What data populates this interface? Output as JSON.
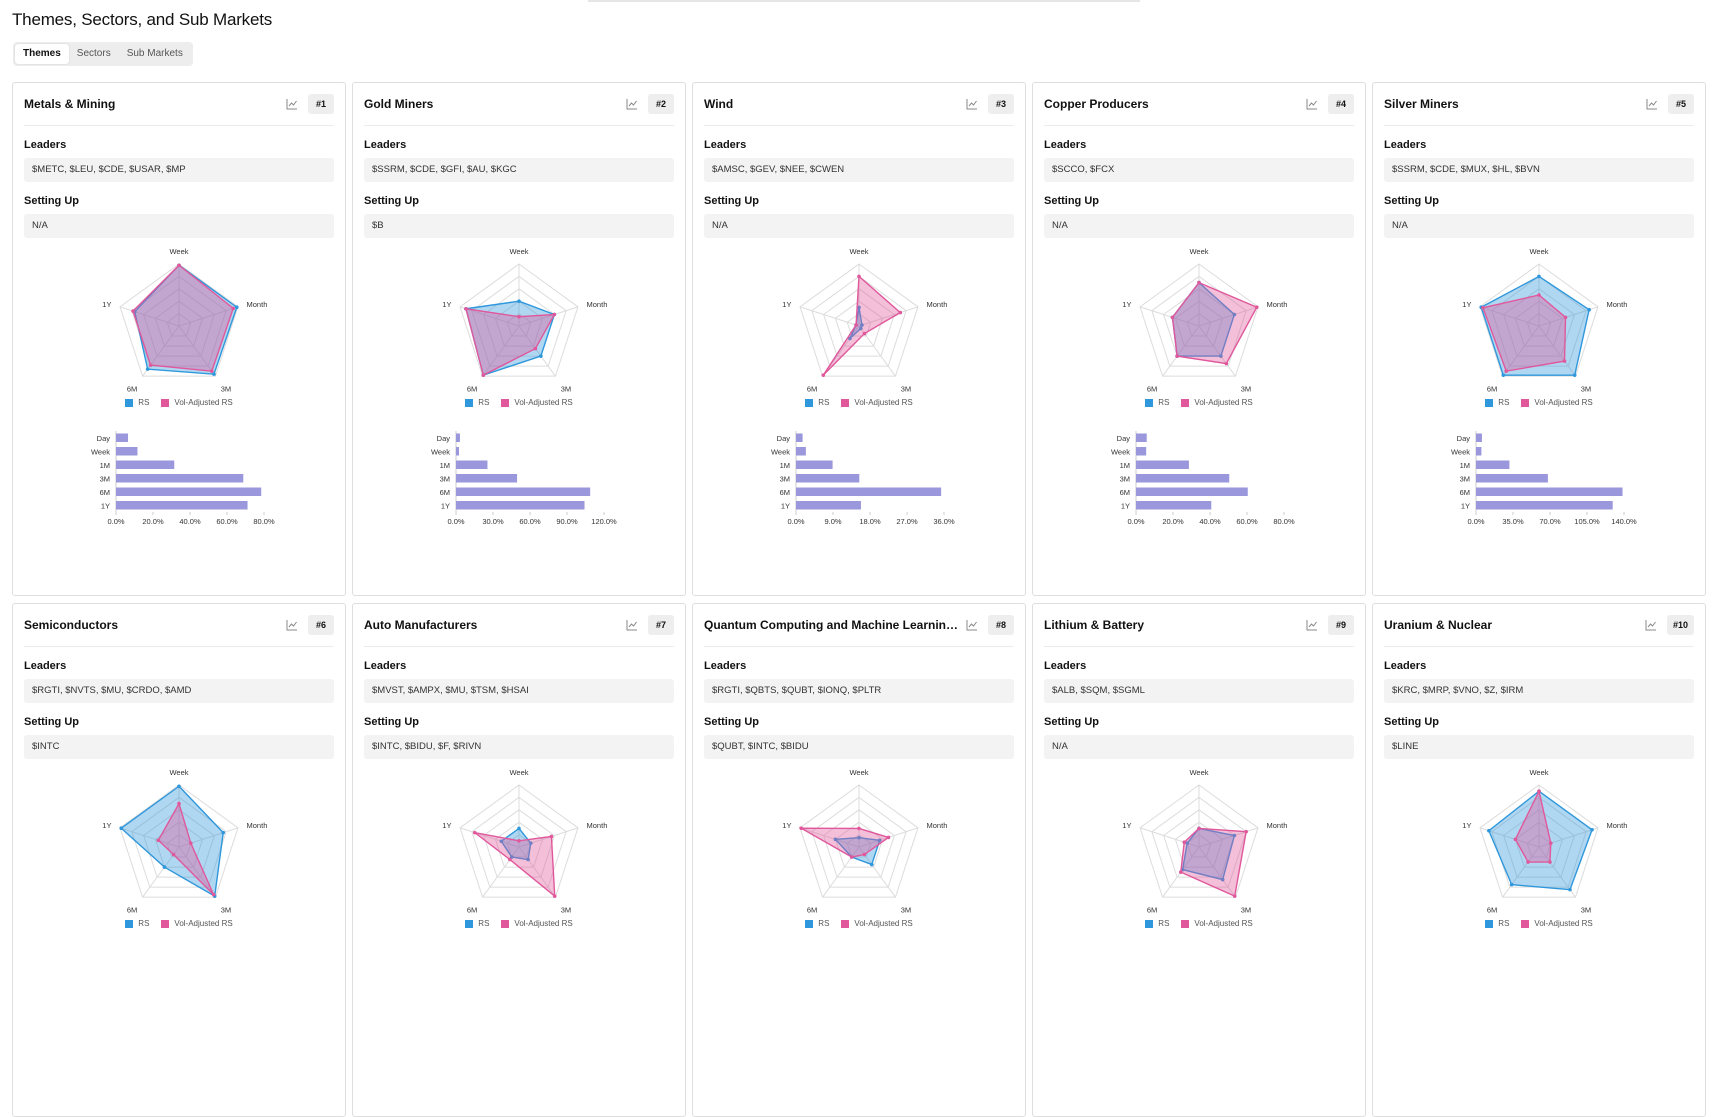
{
  "page": {
    "title": "Themes, Sectors, and Sub Markets"
  },
  "tabs": [
    {
      "label": "Themes",
      "active": true
    },
    {
      "label": "Sectors",
      "active": false
    },
    {
      "label": "Sub Markets",
      "active": false
    }
  ],
  "labels": {
    "leaders": "Leaders",
    "setting_up": "Setting Up",
    "legend_rs": "RS",
    "legend_vol": "Vol-Adjusted RS"
  },
  "colors": {
    "rs": "#2f97db",
    "vol_rs": "#e0589b",
    "bar": "#9a97dc"
  },
  "chart_data": [
    {
      "type": "radar+bar",
      "title": "Metals & Mining",
      "rank": "#1",
      "leaders": "$METC, $LEU, $CDE, $USAR, $MP",
      "setting_up": "N/A",
      "axes": [
        "Week",
        "Month",
        "3M",
        "6M",
        "1Y"
      ],
      "rs": [
        0.98,
        0.98,
        0.96,
        0.86,
        0.75
      ],
      "vol_rs": [
        0.98,
        0.92,
        0.9,
        0.78,
        0.78
      ],
      "bar_categories": [
        "Day",
        "Week",
        "1M",
        "3M",
        "6M",
        "1Y"
      ],
      "bar_values": [
        6.5,
        11.6,
        31.5,
        68.8,
        78.5,
        71.1
      ],
      "bar_ticks": [
        "0.0%",
        "20.0%",
        "40.0%",
        "60.0%",
        "80.0%"
      ],
      "bar_max": 80
    },
    {
      "type": "radar+bar",
      "title": "Gold Miners",
      "rank": "#2",
      "leaders": "$SSRM, $CDE, $GFI, $AU, $KGC",
      "setting_up": "$B",
      "axes": [
        "Week",
        "Month",
        "3M",
        "6M",
        "1Y"
      ],
      "rs": [
        0.4,
        0.6,
        0.6,
        0.98,
        0.9
      ],
      "vol_rs": [
        0.15,
        0.6,
        0.45,
        0.98,
        0.9
      ],
      "bar_categories": [
        "Day",
        "Week",
        "1M",
        "3M",
        "6M",
        "1Y"
      ],
      "bar_values": [
        3.2,
        2.4,
        25.5,
        49.5,
        108.8,
        104.2
      ],
      "bar_ticks": [
        "0.0%",
        "30.0%",
        "60.0%",
        "90.0%",
        "120.0%"
      ],
      "bar_max": 120
    },
    {
      "type": "radar+bar",
      "title": "Wind",
      "rank": "#3",
      "leaders": "$AMSC, $GEV, $NEE, $CWEN",
      "setting_up": "N/A",
      "axes": [
        "Week",
        "Month",
        "3M",
        "6M",
        "1Y"
      ],
      "rs": [
        0.3,
        0.05,
        0.05,
        0.25,
        0.05
      ],
      "vol_rs": [
        0.8,
        0.7,
        0.15,
        0.98,
        0.05
      ],
      "bar_categories": [
        "Day",
        "Week",
        "1M",
        "3M",
        "6M",
        "1Y"
      ],
      "bar_values": [
        1.6,
        2.4,
        8.9,
        15.4,
        35.3,
        15.8
      ],
      "bar_ticks": [
        "0.0%",
        "9.0%",
        "18.0%",
        "27.0%",
        "36.0%"
      ],
      "bar_max": 36
    },
    {
      "type": "radar+bar",
      "title": "Copper Producers",
      "rank": "#4",
      "leaders": "$SCCO, $FCX",
      "setting_up": "N/A",
      "axes": [
        "Week",
        "Month",
        "3M",
        "6M",
        "1Y"
      ],
      "rs": [
        0.7,
        0.6,
        0.6,
        0.6,
        0.45
      ],
      "vol_rs": [
        0.7,
        0.98,
        0.75,
        0.6,
        0.45
      ],
      "bar_categories": [
        "Day",
        "Week",
        "1M",
        "3M",
        "6M",
        "1Y"
      ],
      "bar_values": [
        5.8,
        5.5,
        28.6,
        50.4,
        60.4,
        40.7
      ],
      "bar_ticks": [
        "0.0%",
        "20.0%",
        "40.0%",
        "60.0%",
        "80.0%"
      ],
      "bar_max": 80
    },
    {
      "type": "radar+bar",
      "title": "Silver Miners",
      "rank": "#5",
      "leaders": "$SSRM, $CDE, $MUX, $HL, $BVN",
      "setting_up": "N/A",
      "axes": [
        "Week",
        "Month",
        "3M",
        "6M",
        "1Y"
      ],
      "rs": [
        0.8,
        0.85,
        0.98,
        0.98,
        0.98
      ],
      "vol_rs": [
        0.5,
        0.45,
        0.7,
        0.9,
        0.95
      ],
      "bar_categories": [
        "Day",
        "Week",
        "1M",
        "3M",
        "6M",
        "1Y"
      ],
      "bar_values": [
        5.6,
        5.1,
        31.6,
        68.0,
        138.6,
        129.3
      ],
      "bar_ticks": [
        "0.0%",
        "35.0%",
        "70.0%",
        "105.0%",
        "140.0%"
      ],
      "bar_max": 140
    },
    {
      "type": "radar",
      "title": "Semiconductors",
      "rank": "#6",
      "leaders": "$RGTI, $NVTS, $MU, $CRDO, $AMD",
      "setting_up": "$INTC",
      "axes": [
        "Week",
        "Month",
        "3M",
        "6M",
        "1Y"
      ],
      "rs": [
        0.98,
        0.75,
        0.98,
        0.4,
        0.98
      ],
      "vol_rs": [
        0.7,
        0.2,
        0.95,
        0.15,
        0.35
      ]
    },
    {
      "type": "radar",
      "title": "Auto Manufacturers",
      "rank": "#7",
      "leaders": "$MVST, $AMPX, $MU, $TSM, $HSAI",
      "setting_up": "$INTC, $BIDU, $F, $RIVN",
      "axes": [
        "Week",
        "Month",
        "3M",
        "6M",
        "1Y"
      ],
      "rs": [
        0.3,
        0.2,
        0.25,
        0.2,
        0.3
      ],
      "vol_rs": [
        0.1,
        0.55,
        0.98,
        0.25,
        0.75
      ]
    },
    {
      "type": "radar",
      "title": "Quantum Computing and Machine Learning (AI)",
      "rank": "#8",
      "leaders": "$RGTI, $QBTS, $QUBT, $IONQ, $PLTR",
      "setting_up": "$QUBT, $INTC, $BIDU",
      "axes": [
        "Week",
        "Month",
        "3M",
        "6M",
        "1Y"
      ],
      "rs": [
        0.15,
        0.35,
        0.35,
        0.2,
        0.4
      ],
      "vol_rs": [
        0.3,
        0.5,
        0.15,
        0.2,
        0.98
      ]
    },
    {
      "type": "radar",
      "title": "Lithium & Battery",
      "rank": "#9",
      "leaders": "$ALB, $SQM, $SGML",
      "setting_up": "N/A",
      "axes": [
        "Week",
        "Month",
        "3M",
        "6M",
        "1Y"
      ],
      "rs": [
        0.3,
        0.6,
        0.65,
        0.45,
        0.2
      ],
      "vol_rs": [
        0.3,
        0.8,
        0.98,
        0.5,
        0.25
      ]
    },
    {
      "type": "radar",
      "title": "Uranium & Nuclear",
      "rank": "#10",
      "leaders": "$KRC, $MRP, $VNO, $Z, $IRM",
      "setting_up": "$LINE",
      "axes": [
        "Week",
        "Month",
        "3M",
        "6M",
        "1Y"
      ],
      "rs": [
        0.9,
        0.9,
        0.85,
        0.75,
        0.85
      ],
      "vol_rs": [
        0.9,
        0.2,
        0.3,
        0.3,
        0.4
      ]
    }
  ]
}
